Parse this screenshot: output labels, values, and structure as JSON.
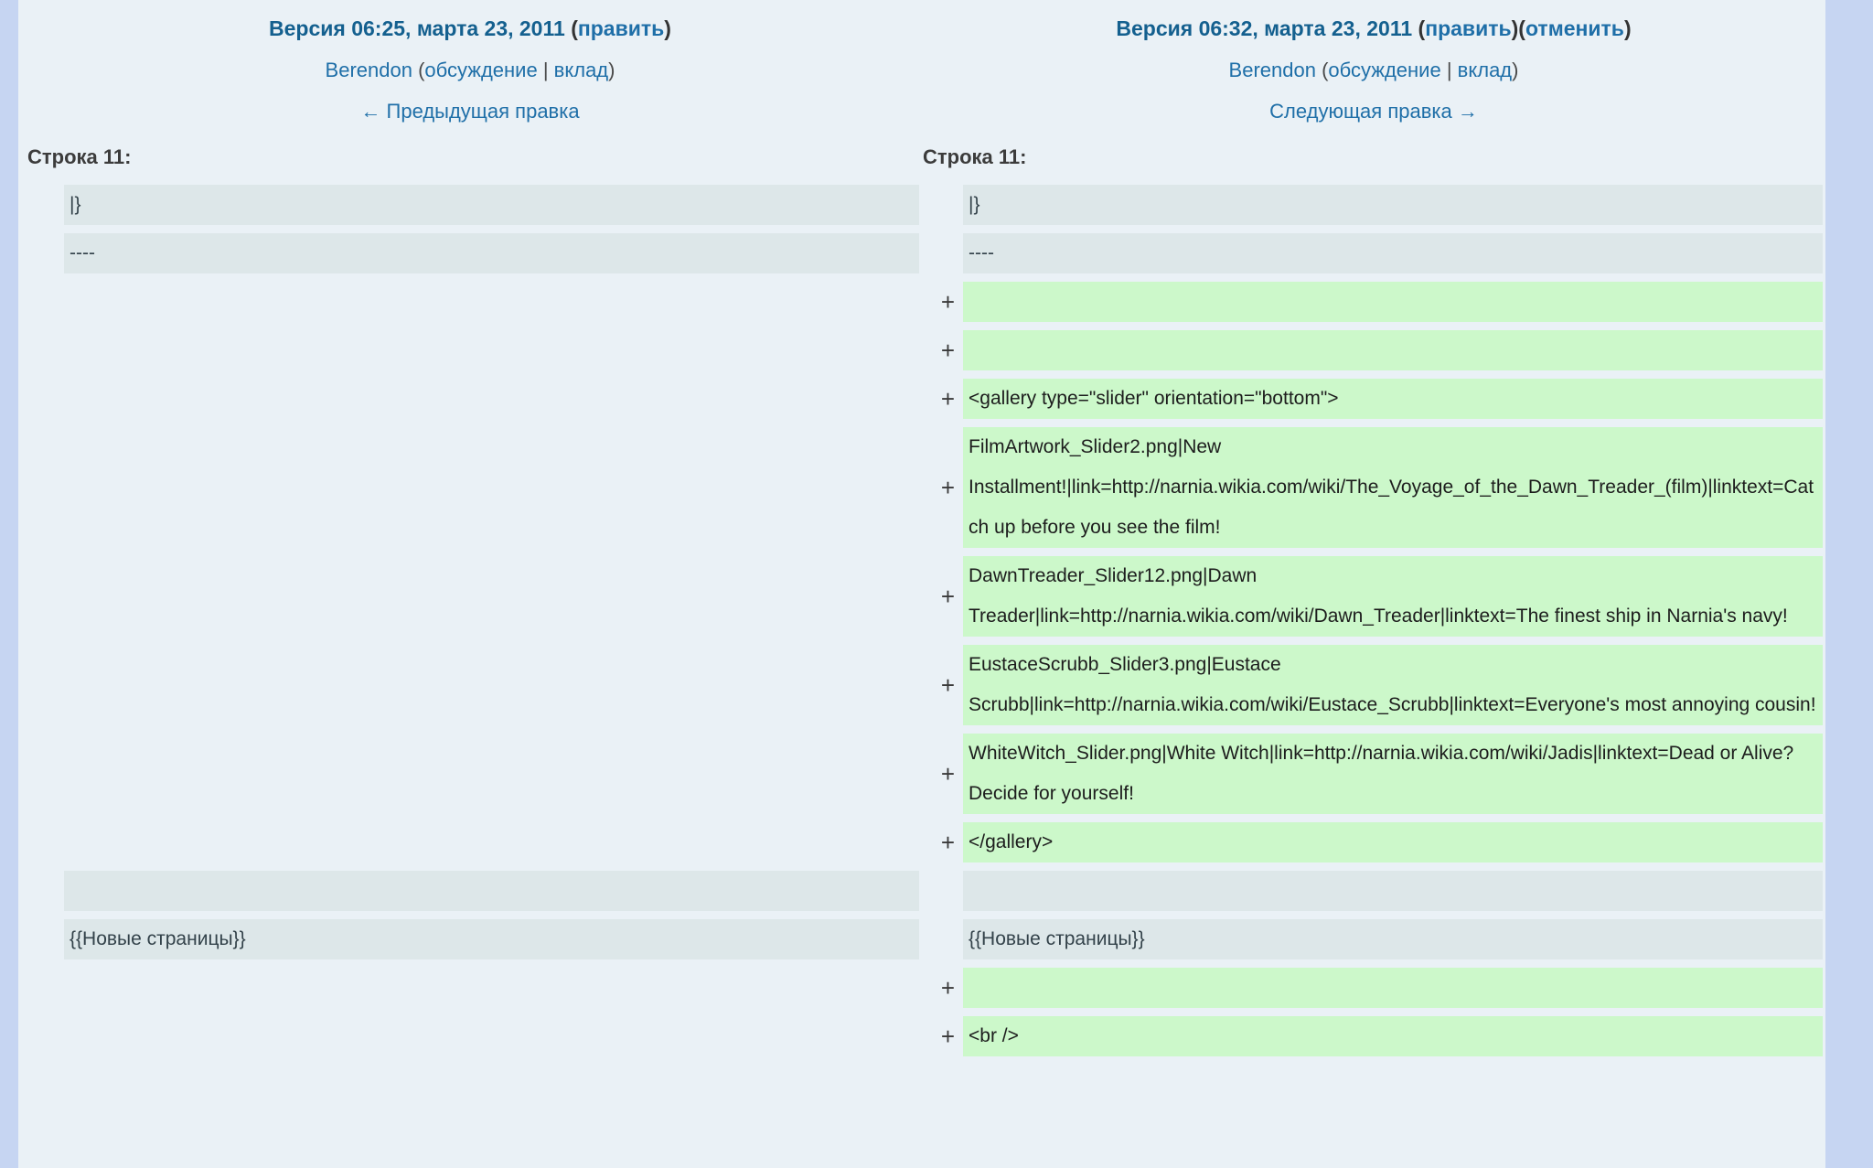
{
  "colors": {
    "page_border": "#c6d5f2",
    "content_background": "#eaf1f6",
    "context_row": "#dde7e9",
    "added_row": "#ccf8ca",
    "link": "#1f6fa8",
    "header_date": "#14608f"
  },
  "old_revision": {
    "title": "Версия 06:25, марта 23, 2011",
    "open_paren": "(",
    "edit_label": "править",
    "close_paren": ")",
    "user": "Berendon",
    "user_open": "(",
    "talk_label": "обсуждение",
    "separator": " | ",
    "contribs_label": "вклад",
    "user_close": ")",
    "nav_label": "← Предыдущая правка"
  },
  "new_revision": {
    "title": "Версия 06:32, марта 23, 2011",
    "open_paren": "(",
    "edit_label": "править",
    "between_parens": ")(",
    "undo_label": "отменить",
    "close_paren": ")",
    "user": "Berendon",
    "user_open": "(",
    "talk_label": "обсуждение",
    "separator": " | ",
    "contribs_label": "вклад",
    "user_close": ")",
    "nav_label": "Следующая правка →"
  },
  "line_header_left": "Строка 11:",
  "line_header_right": "Строка 11:",
  "markers": {
    "added": "+"
  },
  "diff_rows": [
    {
      "type": "context",
      "left": "|}",
      "right": "|}"
    },
    {
      "type": "context",
      "left": "----",
      "right": "----"
    },
    {
      "type": "added",
      "right": ""
    },
    {
      "type": "added",
      "right": ""
    },
    {
      "type": "added",
      "right": "<gallery type=\"slider\" orientation=\"bottom\">"
    },
    {
      "type": "added",
      "right": "FilmArtwork_Slider2.png|New Installment!|link=http://narnia.wikia.com/wiki/The_Voyage_of_the_Dawn_Treader_(film)|linktext=Catch up before you see the film!"
    },
    {
      "type": "added",
      "right": "DawnTreader_Slider12.png|Dawn Treader|link=http://narnia.wikia.com/wiki/Dawn_Treader|linktext=The finest ship in Narnia's navy!"
    },
    {
      "type": "added",
      "right": "EustaceScrubb_Slider3.png|Eustace Scrubb|link=http://narnia.wikia.com/wiki/Eustace_Scrubb|linktext=Everyone's most annoying cousin!"
    },
    {
      "type": "added",
      "right": "WhiteWitch_Slider.png|White Witch|link=http://narnia.wikia.com/wiki/Jadis|linktext=Dead or Alive? Decide for yourself!"
    },
    {
      "type": "added",
      "right": "</gallery>"
    },
    {
      "type": "context",
      "left": "",
      "right": ""
    },
    {
      "type": "context",
      "left": "{{Новые страницы}}",
      "right": "{{Новые страницы}}"
    },
    {
      "type": "added",
      "right": ""
    },
    {
      "type": "added",
      "right": "<br />"
    }
  ]
}
